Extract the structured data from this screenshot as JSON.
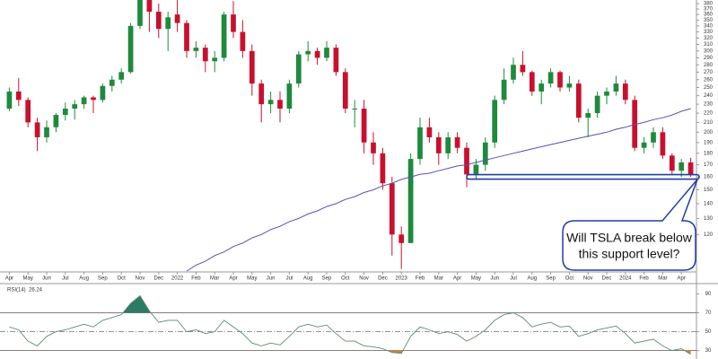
{
  "chart_data": [
    {
      "type": "candlestick",
      "log_scale": true,
      "up_color": "#1f8a3c",
      "down_color": "#c8102e",
      "xlim": [
        -1,
        74
      ],
      "ylim": [
        100,
        387
      ],
      "yticks": [
        120,
        130,
        140,
        150,
        160,
        170,
        180,
        190,
        200,
        210,
        220,
        230,
        240,
        250,
        260,
        270,
        280,
        290,
        300,
        310,
        320,
        330,
        340,
        350,
        360,
        370,
        380
      ],
      "xticks": [
        {
          "value": 0,
          "label": "Apr"
        },
        {
          "value": 2,
          "label": "May"
        },
        {
          "value": 4,
          "label": "Jun"
        },
        {
          "value": 6,
          "label": "Jul"
        },
        {
          "value": 8,
          "label": "Aug"
        },
        {
          "value": 10,
          "label": "Sep"
        },
        {
          "value": 12,
          "label": "Oct"
        },
        {
          "value": 14,
          "label": "Nov"
        },
        {
          "value": 16,
          "label": "Dec"
        },
        {
          "value": 18,
          "label": "2022"
        },
        {
          "value": 20,
          "label": "Feb"
        },
        {
          "value": 22,
          "label": "Mar"
        },
        {
          "value": 24,
          "label": "Apr"
        },
        {
          "value": 26,
          "label": "May"
        },
        {
          "value": 28,
          "label": "Jun"
        },
        {
          "value": 30,
          "label": "Jul"
        },
        {
          "value": 32,
          "label": "Aug"
        },
        {
          "value": 34,
          "label": "Sep"
        },
        {
          "value": 36,
          "label": "Oct"
        },
        {
          "value": 38,
          "label": "Nov"
        },
        {
          "value": 40,
          "label": "Dec"
        },
        {
          "value": 42,
          "label": "2023"
        },
        {
          "value": 44,
          "label": "Feb"
        },
        {
          "value": 46,
          "label": "Mar"
        },
        {
          "value": 48,
          "label": "Apr"
        },
        {
          "value": 50,
          "label": "May"
        },
        {
          "value": 52,
          "label": "Jun"
        },
        {
          "value": 54,
          "label": "Jul"
        },
        {
          "value": 56,
          "label": "Aug"
        },
        {
          "value": 58,
          "label": "Sep"
        },
        {
          "value": 60,
          "label": "Oct"
        },
        {
          "value": 62,
          "label": "Nov"
        },
        {
          "value": 64,
          "label": "Dec"
        },
        {
          "value": 66,
          "label": "2024"
        },
        {
          "value": 68,
          "label": "Feb"
        },
        {
          "value": 70,
          "label": "Mar"
        },
        {
          "value": 72,
          "label": "Apr"
        }
      ],
      "ohlc": [
        [
          225,
          250,
          222,
          245
        ],
        [
          245,
          262,
          228,
          235
        ],
        [
          235,
          238,
          205,
          210
        ],
        [
          210,
          215,
          182,
          195
        ],
        [
          195,
          212,
          190,
          205
        ],
        [
          205,
          220,
          200,
          218
        ],
        [
          218,
          232,
          212,
          225
        ],
        [
          225,
          235,
          213,
          230
        ],
        [
          230,
          240,
          225,
          238
        ],
        [
          238,
          240,
          220,
          235
        ],
        [
          235,
          255,
          232,
          252
        ],
        [
          252,
          265,
          245,
          260
        ],
        [
          260,
          275,
          255,
          270
        ],
        [
          270,
          345,
          268,
          340
        ],
        [
          340,
          410,
          335,
          390
        ],
        [
          390,
          395,
          330,
          365
        ],
        [
          365,
          380,
          320,
          335
        ],
        [
          335,
          365,
          300,
          355
        ],
        [
          360,
          390,
          330,
          345
        ],
        [
          345,
          350,
          290,
          300
        ],
        [
          300,
          315,
          290,
          305
        ],
        [
          305,
          310,
          270,
          285
        ],
        [
          285,
          300,
          270,
          290
        ],
        [
          290,
          365,
          285,
          360
        ],
        [
          360,
          385,
          320,
          330
        ],
        [
          330,
          350,
          290,
          300
        ],
        [
          300,
          310,
          240,
          255
        ],
        [
          255,
          260,
          210,
          230
        ],
        [
          230,
          245,
          220,
          235
        ],
        [
          235,
          245,
          210,
          225
        ],
        [
          225,
          260,
          220,
          255
        ],
        [
          255,
          300,
          250,
          295
        ],
        [
          295,
          315,
          285,
          300
        ],
        [
          300,
          305,
          280,
          290
        ],
        [
          290,
          315,
          285,
          305
        ],
        [
          305,
          310,
          265,
          270
        ],
        [
          270,
          275,
          220,
          225
        ],
        [
          225,
          235,
          205,
          225
        ],
        [
          225,
          235,
          180,
          190
        ],
        [
          190,
          200,
          170,
          180
        ],
        [
          180,
          185,
          150,
          155
        ],
        [
          155,
          160,
          108,
          120
        ],
        [
          120,
          125,
          101,
          115
        ],
        [
          115,
          180,
          115,
          175
        ],
        [
          175,
          215,
          170,
          205
        ],
        [
          205,
          215,
          190,
          195
        ],
        [
          195,
          200,
          170,
          180
        ],
        [
          180,
          200,
          175,
          195
        ],
        [
          195,
          200,
          180,
          185
        ],
        [
          185,
          190,
          152,
          162
        ],
        [
          162,
          175,
          158,
          170
        ],
        [
          170,
          195,
          165,
          190
        ],
        [
          190,
          240,
          185,
          235
        ],
        [
          235,
          275,
          230,
          260
        ],
        [
          260,
          290,
          255,
          280
        ],
        [
          280,
          300,
          265,
          270
        ],
        [
          270,
          272,
          240,
          245
        ],
        [
          245,
          260,
          230,
          255
        ],
        [
          255,
          275,
          250,
          270
        ],
        [
          270,
          272,
          245,
          250
        ],
        [
          250,
          265,
          245,
          255
        ],
        [
          255,
          260,
          210,
          215
        ],
        [
          215,
          225,
          195,
          220
        ],
        [
          220,
          245,
          215,
          240
        ],
        [
          240,
          250,
          230,
          245
        ],
        [
          245,
          265,
          240,
          255
        ],
        [
          255,
          260,
          230,
          235
        ],
        [
          235,
          240,
          182,
          185
        ],
        [
          185,
          195,
          180,
          190
        ],
        [
          190,
          205,
          185,
          200
        ],
        [
          200,
          205,
          175,
          178
        ],
        [
          178,
          180,
          162,
          165
        ],
        [
          165,
          175,
          160,
          172
        ],
        [
          172,
          176,
          160,
          162
        ]
      ],
      "series": [
        {
          "color": "#5a4fb5",
          "values": [
            null,
            null,
            null,
            null,
            null,
            null,
            null,
            null,
            null,
            null,
            null,
            null,
            null,
            null,
            null,
            null,
            null,
            null,
            null,
            100,
            103,
            105,
            108,
            110,
            113,
            115,
            118,
            120,
            123,
            125,
            128,
            130,
            133,
            135,
            138,
            140,
            143,
            145,
            148,
            150,
            153,
            155,
            158,
            160,
            162,
            163,
            165,
            167,
            169,
            170,
            172,
            174,
            176,
            178,
            180,
            182,
            184,
            186,
            188,
            190,
            192,
            194,
            196,
            198,
            200,
            203,
            205,
            208,
            210,
            213,
            215,
            218,
            222,
            225
          ]
        }
      ],
      "support_level": 160,
      "support_start": 49,
      "annotation": [
        "Will TSLA break below",
        "this support level?"
      ]
    },
    {
      "type": "line",
      "label": "RSI(14)",
      "last": 26.24,
      "color": "#5e8a72",
      "overbought_color": "#2d7a66",
      "oversold_color": "#e07b2c",
      "xlim": [
        -1,
        74
      ],
      "ylim": [
        23,
        99
      ],
      "yticks": [
        30,
        50,
        70,
        90
      ],
      "hlines": [
        70,
        50,
        30
      ],
      "values": [
        55,
        52,
        40,
        35,
        45,
        50,
        52,
        55,
        58,
        55,
        62,
        65,
        68,
        80,
        88,
        72,
        60,
        62,
        62,
        50,
        52,
        48,
        50,
        62,
        55,
        48,
        38,
        35,
        38,
        36,
        45,
        55,
        58,
        55,
        57,
        48,
        40,
        40,
        35,
        34,
        32,
        28,
        27,
        45,
        55,
        52,
        48,
        50,
        47,
        40,
        45,
        52,
        62,
        68,
        70,
        65,
        55,
        58,
        60,
        55,
        56,
        45,
        48,
        52,
        54,
        56,
        48,
        38,
        40,
        42,
        35,
        30,
        32,
        26
      ]
    }
  ]
}
